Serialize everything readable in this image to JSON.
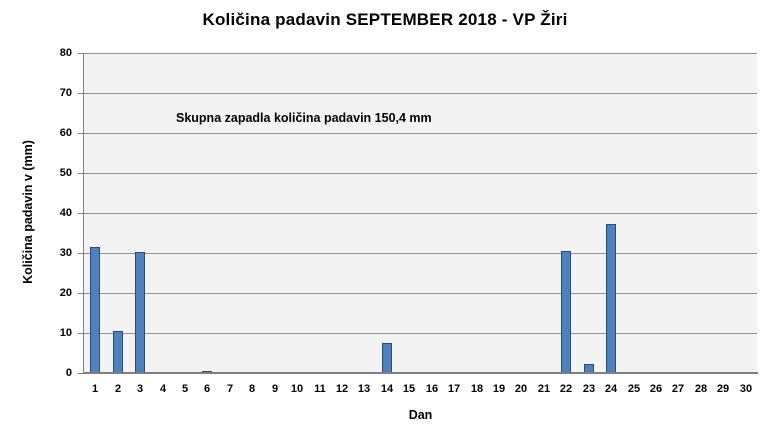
{
  "title": "Količina padavin SEPTEMBER 2018 - VP Žiri",
  "annotation": "Skupna zapadla količina padavin 150,4 mm",
  "chart_data": {
    "type": "bar",
    "title": "Količina padavin SEPTEMBER 2018 - VP Žiri",
    "subtitle": "Skupna zapadla količina padavin 150,4 mm",
    "xlabel": "Dan",
    "ylabel": "Količina padavin v  (mm)",
    "categories": [
      "1",
      "2",
      "3",
      "4",
      "5",
      "6",
      "7",
      "8",
      "9",
      "10",
      "11",
      "12",
      "13",
      "14",
      "15",
      "16",
      "17",
      "18",
      "19",
      "20",
      "21",
      "22",
      "23",
      "24",
      "25",
      "26",
      "27",
      "28",
      "29",
      "30"
    ],
    "values": [
      31.5,
      10.5,
      30.3,
      0,
      0,
      0.4,
      0,
      0,
      0,
      0,
      0,
      0,
      0,
      7.5,
      0,
      0,
      0,
      0,
      0,
      0,
      0,
      30.6,
      2.3,
      37.3,
      0,
      0,
      0,
      0,
      0,
      0
    ],
    "total_mm": "150,4",
    "ylim": [
      0,
      80
    ],
    "ytick_step": 10,
    "grid": true,
    "legend": "none",
    "colors": {
      "bar_fill": "#4f81bd",
      "bar_border": "#2a4c73",
      "plot_bg": "#f3f3f3",
      "gridline": "#919191",
      "axis": "#808080",
      "text": "#000000",
      "page_bg": "#ffffff"
    }
  }
}
